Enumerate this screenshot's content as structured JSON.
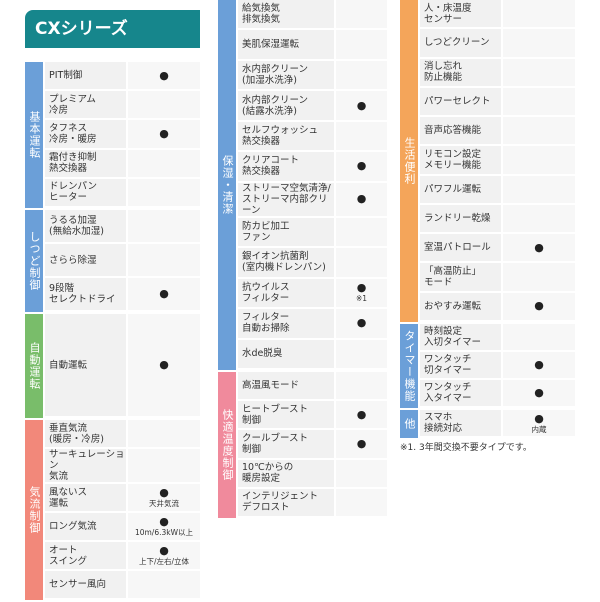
{
  "header": {
    "title": "CXシリーズ"
  },
  "columns": [
    {
      "groups": [
        {
          "label": "基本運転",
          "rows": [
            {
              "name": "PIT制御",
              "mark": "●"
            },
            {
              "name": "プレミアム\n冷房"
            },
            {
              "name": "タフネス\n冷房・暖房",
              "mark": "●"
            },
            {
              "name": "霜付き抑制\n熱交換器"
            },
            {
              "name": "ドレンパン\nヒーター"
            }
          ]
        },
        {
          "label": "しつど制御",
          "rows": [
            {
              "name": "うるる加湿\n(無給水加湿)"
            },
            {
              "name": "さらら除湿"
            },
            {
              "name": "9段階\nセレクトドライ",
              "mark": "●"
            }
          ]
        },
        {
          "label": "自動運転",
          "rows": [
            {
              "name": "自動運転",
              "mark": "●"
            }
          ]
        },
        {
          "label": "気流制御",
          "rows": [
            {
              "name": "垂直気流\n(暖房・冷房)"
            },
            {
              "name": "サーキュレーション\n気流"
            },
            {
              "name": "風ないス\n運転",
              "mark": "●",
              "note": "天井気流"
            },
            {
              "name": "ロング気流",
              "mark": "●",
              "note": "10m/6.3kW以上"
            },
            {
              "name": "オート\nスイング",
              "mark": "●",
              "note": "上下/左右/立体"
            },
            {
              "name": "センサー風向"
            }
          ]
        }
      ]
    },
    {
      "groups": [
        {
          "label": "保湿・清潔",
          "rows": [
            {
              "name": "給気換気\n排気換気"
            },
            {
              "name": "美肌保湿運転"
            },
            {
              "name": "水内部クリーン\n(加湿水洗浄)"
            },
            {
              "name": "水内部クリーン\n(結露水洗浄)",
              "mark": "●"
            },
            {
              "name": "セルフウォッシュ\n熱交換器"
            },
            {
              "name": "クリアコート\n熱交換器",
              "mark": "●"
            },
            {
              "name": "ストリーマ空気清浄/\nストリーマ内部クリーン",
              "mark": "●"
            },
            {
              "name": "防カビ加工\nファン"
            },
            {
              "name": "銀イオン抗菌剤\n(室内機ドレンパン)"
            },
            {
              "name": "抗ウイルス\nフィルター",
              "mark": "●",
              "note": "※1"
            },
            {
              "name": "フィルター\n自動お掃除",
              "mark": "●"
            },
            {
              "name": "水de脱臭"
            }
          ]
        },
        {
          "label": "快適温度制御",
          "rows": [
            {
              "name": "高温風モード"
            },
            {
              "name": "ヒートブースト\n制御",
              "mark": "●"
            },
            {
              "name": "クールブースト\n制御",
              "mark": "●"
            },
            {
              "name": "10℃からの\n暖房設定"
            },
            {
              "name": "インテリジェント\nデフロスト"
            }
          ]
        }
      ]
    },
    {
      "groups": [
        {
          "label": "生活便利",
          "rows": [
            {
              "name": "人・床温度\nセンサー"
            },
            {
              "name": "しつどクリーン"
            },
            {
              "name": "消し忘れ\n防止機能"
            },
            {
              "name": "パワーセレクト"
            },
            {
              "name": "音声応答機能"
            },
            {
              "name": "リモコン設定\nメモリー機能"
            },
            {
              "name": "パワフル運転"
            },
            {
              "name": "ランドリー乾燥"
            },
            {
              "name": "室温パトロール",
              "mark": "●"
            },
            {
              "name": "「高温防止」\nモード"
            },
            {
              "name": "おやすみ運転",
              "mark": "●"
            }
          ]
        },
        {
          "label": "タイマー機能",
          "rows": [
            {
              "name": "時刻設定\n入切タイマー"
            },
            {
              "name": "ワンタッチ\n切タイマー",
              "mark": "●"
            },
            {
              "name": "ワンタッチ\n入タイマー",
              "mark": "●"
            }
          ]
        },
        {
          "label": "他",
          "rows": [
            {
              "name": "スマホ\n接続対応",
              "mark": "●",
              "note": "内蔵"
            }
          ]
        }
      ],
      "footnote": "※1. 3年間交換不要タイプです。"
    }
  ]
}
